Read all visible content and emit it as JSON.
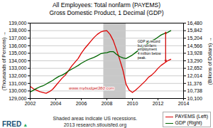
{
  "chart_data": {
    "type": "line",
    "title": "All Employees: Total nonfarm (PAYEMS)",
    "subtitle": "Gross Domestic Product, 1 Decimal (GDP)",
    "ylabel": "(Thousands of Persons)",
    "y2label": "(Billions of Dollars)",
    "caption": "Shaded areas indicate US recessions.\n2013 research.stlouisfed.org",
    "logo": [
      {
        "text": "FRED",
        "color": "#1a5276"
      },
      {
        "text": "▲",
        "color": "#27ae60"
      }
    ],
    "legend": "lower right",
    "grid": true,
    "xlim": [
      2002,
      2014
    ],
    "xticks": [
      2002,
      2004,
      2006,
      2008,
      2010,
      2012,
      2014
    ],
    "ylim": [
      129000,
      139000
    ],
    "yticks": [
      {
        "value": 129000,
        "label": "129,000"
      },
      {
        "value": 130000,
        "label": "130,000"
      },
      {
        "value": 131000,
        "label": "131,000"
      },
      {
        "value": 132000,
        "label": "132,000"
      },
      {
        "value": 133000,
        "label": "133,000"
      },
      {
        "value": 134000,
        "label": "134,000"
      },
      {
        "value": 135000,
        "label": "135,000"
      },
      {
        "value": 136000,
        "label": "136,000"
      },
      {
        "value": 137000,
        "label": "137,000"
      },
      {
        "value": 138000,
        "label": "138,000"
      },
      {
        "value": 139000,
        "label": "139,000"
      }
    ],
    "y2lim": [
      10100,
      16480
    ],
    "y2ticks": [
      {
        "value": 10100,
        "label": "10,100"
      },
      {
        "value": 10738,
        "label": "10,738"
      },
      {
        "value": 11376,
        "label": "11,376"
      },
      {
        "value": 12014,
        "label": "12,014"
      },
      {
        "value": 12652,
        "label": "12,652"
      },
      {
        "value": 13290,
        "label": "13,290"
      },
      {
        "value": 13928,
        "label": "13,928"
      },
      {
        "value": 14566,
        "label": "14,566"
      },
      {
        "value": 15204,
        "label": "15,204"
      },
      {
        "value": 15842,
        "label": "15,842"
      },
      {
        "value": 16480,
        "label": "16,480"
      }
    ],
    "shaded": [
      {
        "x1": 2007.75,
        "x2": 2009.5,
        "color": "#c8c8c8"
      }
    ],
    "annotations": [
      {
        "text": "GDP at record\nbut nonfarm\nemployment\n4 million below\npeak.",
        "x": 2010.4,
        "y": 135500
      },
      {
        "text": "www.mybudget360.com",
        "x": 2006.8,
        "y": 130350,
        "color": "#cc2222"
      }
    ],
    "arrows": [
      {
        "x": 2012.6,
        "y1": 133900,
        "y2": 137800,
        "color": "#cc0000"
      }
    ],
    "x": [
      2002.0,
      2002.25,
      2002.5,
      2002.75,
      2003.0,
      2003.25,
      2003.5,
      2003.75,
      2004.0,
      2004.25,
      2004.5,
      2004.75,
      2005.0,
      2005.25,
      2005.5,
      2005.75,
      2006.0,
      2006.25,
      2006.5,
      2006.75,
      2007.0,
      2007.25,
      2007.5,
      2007.75,
      2008.0,
      2008.25,
      2008.5,
      2008.75,
      2009.0,
      2009.25,
      2009.5,
      2009.75,
      2010.0,
      2010.25,
      2010.5,
      2010.75,
      2011.0,
      2011.25,
      2011.5,
      2011.75,
      2012.0,
      2012.25,
      2012.5,
      2012.75,
      2013.0
    ],
    "series": [
      {
        "name": "PAYEMS (Left)",
        "color": "#dd0000",
        "values": [
          130600,
          130300,
          130100,
          129900,
          129800,
          129700,
          129900,
          130200,
          130700,
          131200,
          131700,
          132100,
          132700,
          133300,
          133800,
          134300,
          135000,
          135600,
          136100,
          136600,
          137100,
          137500,
          137800,
          137950,
          138000,
          137500,
          136700,
          135500,
          134200,
          132800,
          130900,
          130100,
          129800,
          130100,
          130500,
          130900,
          131300,
          131800,
          132100,
          132500,
          133000,
          133400,
          133700,
          134000,
          134200
        ]
      },
      {
        "name": "GDP (Right)",
        "color": "#006600",
        "axis": "y2",
        "values": [
          10650,
          10800,
          10950,
          11080,
          11170,
          11320,
          11480,
          11620,
          11810,
          11970,
          12080,
          12230,
          12430,
          12580,
          12730,
          12890,
          13080,
          13230,
          13380,
          13480,
          13580,
          13720,
          13880,
          13950,
          13980,
          14070,
          14070,
          13850,
          13650,
          13540,
          13480,
          13630,
          13780,
          13990,
          14200,
          14390,
          14580,
          14790,
          14990,
          15100,
          15290,
          15480,
          15600,
          15690,
          15842
        ]
      }
    ]
  }
}
